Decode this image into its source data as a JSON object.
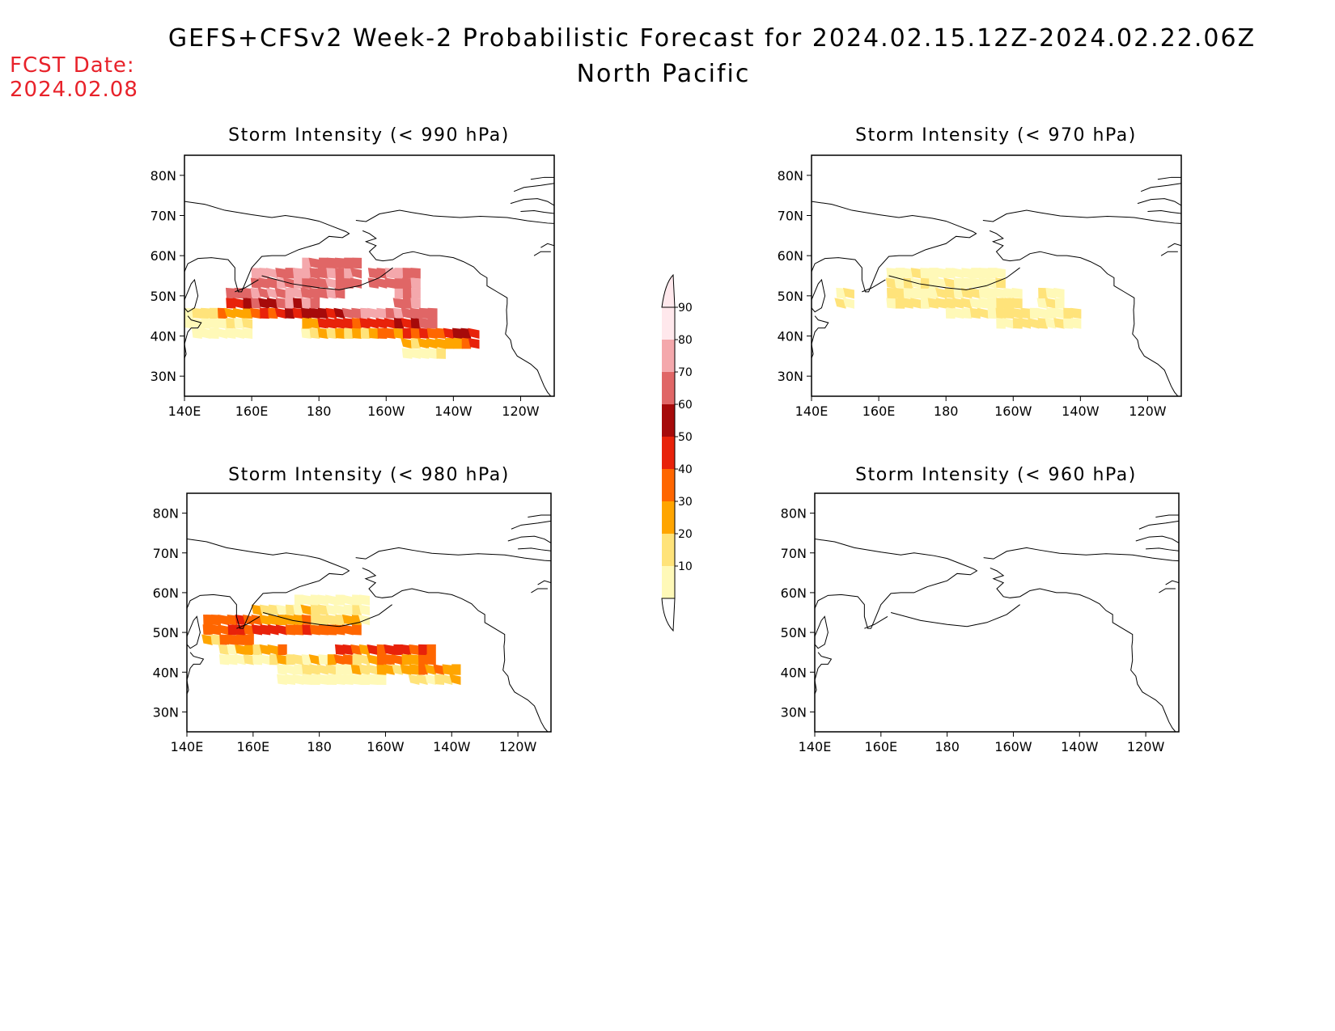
{
  "header": {
    "title": "GEFS+CFSv2 Week-2 Probabilistic Forecast for 2024.02.15.12Z-2024.02.22.06Z",
    "subtitle": "North Pacific",
    "fcst_label": "FCST Date:",
    "fcst_value": "2024.02.08",
    "fcst_color": "#e8222a"
  },
  "axes": {
    "lon_ticks": [
      "140E",
      "160E",
      "180",
      "160W",
      "140W",
      "120W"
    ],
    "lat_ticks": [
      "80N",
      "70N",
      "60N",
      "50N",
      "40N",
      "30N"
    ],
    "lon_range": [
      140,
      250
    ],
    "lat_range": [
      25,
      85
    ]
  },
  "colorbar": {
    "levels": [
      "10",
      "20",
      "30",
      "40",
      "50",
      "60",
      "70",
      "80",
      "90"
    ],
    "colors": [
      "#fff9b8",
      "#ffe37a",
      "#ffa500",
      "#ff6600",
      "#e8220a",
      "#a60a0a",
      "#e06666",
      "#f4a8ac",
      "#ffe8ec"
    ]
  },
  "panels": [
    {
      "title": "Storm Intensity (< 990 hPa)",
      "intensity": 5
    },
    {
      "title": "Storm Intensity (< 970 hPa)",
      "intensity": 1
    },
    {
      "title": "Storm Intensity (< 980 hPa)",
      "intensity": 3
    },
    {
      "title": "Storm Intensity (< 960 hPa)",
      "intensity": 0
    }
  ]
}
